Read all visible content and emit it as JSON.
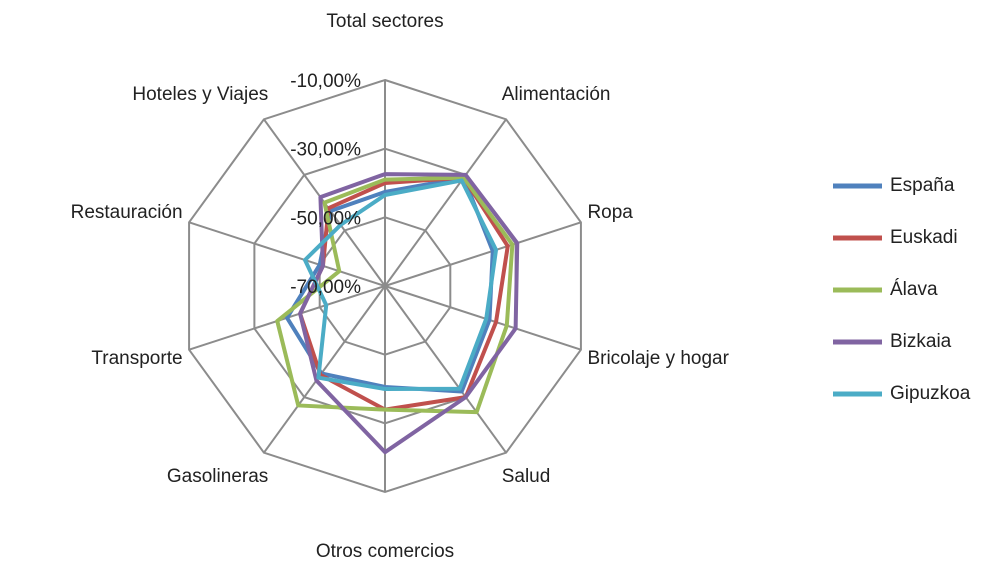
{
  "chart_data": {
    "type": "radar",
    "categories": [
      "Total sectores",
      "Alimentación",
      "Ropa",
      "Bricolaje y hogar",
      "Salud",
      "Otros comercios",
      "Gasolineras",
      "Transporte",
      "Restauración",
      "Hoteles y Viajes"
    ],
    "ylim": [
      -70,
      -10
    ],
    "yticks": [
      {
        "value": -10,
        "label": "-10,00%"
      },
      {
        "value": -30,
        "label": "-30,00%"
      },
      {
        "value": -50,
        "label": "-50,00%"
      },
      {
        "value": -70,
        "label": "-70,00%"
      }
    ],
    "grid": true,
    "legend": "right",
    "series": [
      {
        "name": "España",
        "color": "#4f81bd",
        "values": [
          -42.6,
          -31,
          -37,
          -38,
          -32,
          -40.6,
          -38.5,
          -40,
          -50,
          -43
        ]
      },
      {
        "name": "Euskadi",
        "color": "#c0504d",
        "values": [
          -40,
          -31,
          -32.4,
          -36,
          -30,
          -34,
          -38,
          -44,
          -51,
          -42
        ]
      },
      {
        "name": "Álava",
        "color": "#9bbb59",
        "values": [
          -39,
          -31,
          -31,
          -32.7,
          -24.6,
          -34,
          -27,
          -37,
          -56,
          -40
        ]
      },
      {
        "name": "Bizkaia",
        "color": "#8064a2",
        "values": [
          -37.4,
          -30,
          -29.5,
          -30,
          -30,
          -21.6,
          -36,
          -44,
          -51,
          -38
        ]
      },
      {
        "name": "Gipuzkoa",
        "color": "#4bacc6",
        "values": [
          -43.5,
          -32,
          -36,
          -39,
          -33,
          -40,
          -37,
          -52,
          -45.5,
          -48
        ]
      }
    ]
  }
}
